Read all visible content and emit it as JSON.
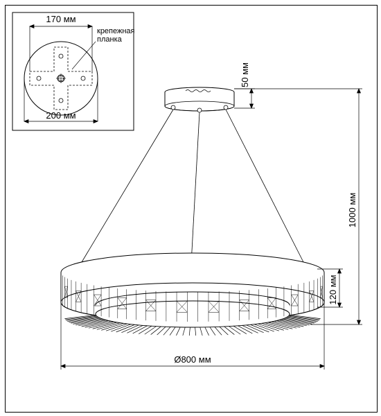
{
  "inset": {
    "width_label": "170 мм",
    "label_line1": "крепежная",
    "label_line2": "планка",
    "circle_diameter": "200 мм"
  },
  "main": {
    "canopy_height": "50 мм",
    "total_height": "1000 мм",
    "ring_height": "120 мм",
    "ring_diameter": "Ø800 мм"
  },
  "colors": {
    "line": "#000000",
    "fill_light": "#ffffff",
    "fill_gray": "#f0f0f0"
  }
}
